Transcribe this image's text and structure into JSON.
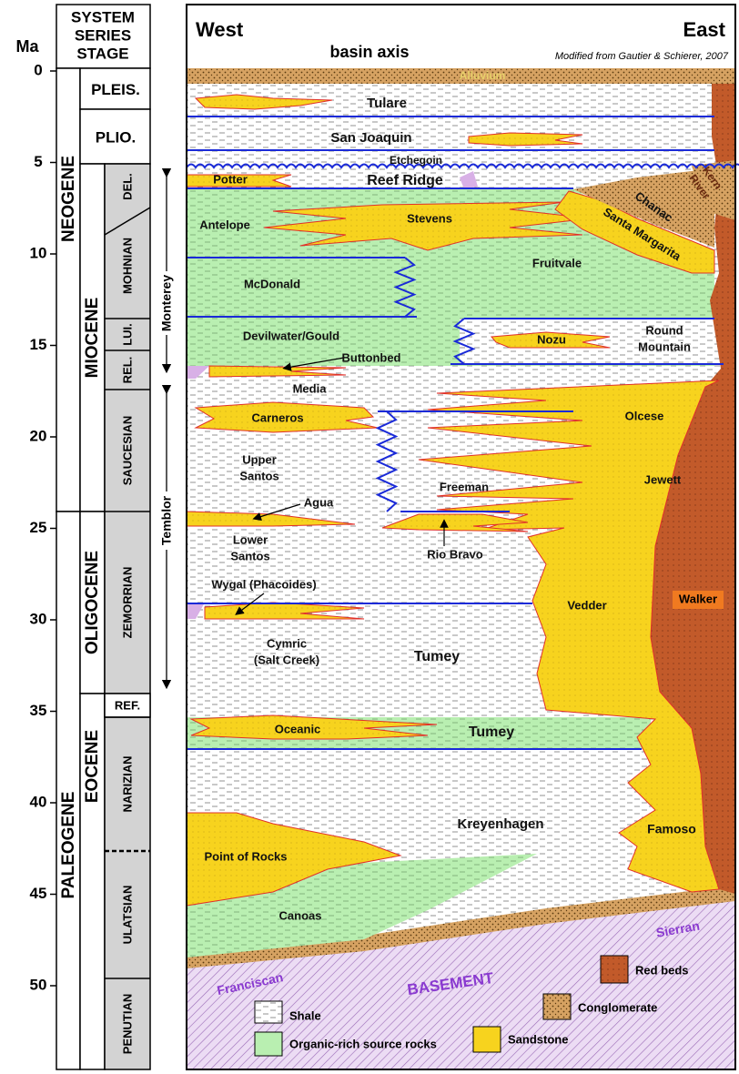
{
  "header": {
    "west": "West",
    "east": "East",
    "basin_axis": "basin axis",
    "credit": "Modified from Gautier & Schierer, 2007"
  },
  "age_axis": {
    "label": "Ma",
    "ticks": [
      0,
      5,
      10,
      15,
      20,
      25,
      30,
      35,
      40,
      45,
      50
    ]
  },
  "columns": {
    "headings": [
      "SYSTEM",
      "SERIES",
      "STAGE"
    ],
    "systems": [
      "NEOGENE",
      "PALEOGENE"
    ],
    "series": [
      "PLEIS.",
      "PLIO.",
      "MIOCENE",
      "OLIGOCENE",
      "EOCENE"
    ],
    "stages": [
      "DEL.",
      "MOHNIAN",
      "LUI.",
      "REL.",
      "SAUCESIAN",
      "ZEMORRIAN",
      "REF.",
      "NARIZIAN",
      "ULATSIAN",
      "PENUTIAN"
    ]
  },
  "groups": [
    "Monterey",
    "Temblor"
  ],
  "formations": [
    {
      "lines": [
        "Alluvium"
      ]
    },
    {
      "lines": [
        "Tulare"
      ]
    },
    {
      "lines": [
        "San Joaquin"
      ]
    },
    {
      "lines": [
        "Etchegoin"
      ]
    },
    {
      "lines": [
        "Potter"
      ]
    },
    {
      "lines": [
        "Reef Ridge"
      ]
    },
    {
      "lines": [
        "Antelope"
      ]
    },
    {
      "lines": [
        "Stevens"
      ]
    },
    {
      "lines": [
        "Fruitvale"
      ]
    },
    {
      "lines": [
        "McDonald"
      ]
    },
    {
      "lines": [
        "Devilwater/Gould"
      ]
    },
    {
      "lines": [
        "Nozu"
      ]
    },
    {
      "lines": [
        "Round",
        "Mountain"
      ]
    },
    {
      "lines": [
        "Buttonbed"
      ]
    },
    {
      "lines": [
        "Media"
      ]
    },
    {
      "lines": [
        "Carneros"
      ]
    },
    {
      "lines": [
        "Olcese"
      ]
    },
    {
      "lines": [
        "Upper",
        "Santos"
      ]
    },
    {
      "lines": [
        "Freeman"
      ]
    },
    {
      "lines": [
        "Jewett"
      ]
    },
    {
      "lines": [
        "Agua"
      ]
    },
    {
      "lines": [
        "Lower",
        "Santos"
      ]
    },
    {
      "lines": [
        "Rio Bravo"
      ]
    },
    {
      "lines": [
        "Wygal (Phacoides)"
      ]
    },
    {
      "lines": [
        "Vedder"
      ]
    },
    {
      "lines": [
        "Walker"
      ]
    },
    {
      "lines": [
        "Cymric",
        "(Salt Creek)"
      ]
    },
    {
      "lines": [
        "Tumey"
      ]
    },
    {
      "lines": [
        "Oceanic"
      ]
    },
    {
      "lines": [
        "Tumey"
      ]
    },
    {
      "lines": [
        "Kreyenhagen"
      ]
    },
    {
      "lines": [
        "Famoso"
      ]
    },
    {
      "lines": [
        "Point of Rocks"
      ]
    },
    {
      "lines": [
        "Canoas"
      ]
    },
    {
      "lines": [
        "Kern",
        "River"
      ]
    },
    {
      "lines": [
        "Chanac"
      ]
    },
    {
      "lines": [
        "Santa Margarita"
      ]
    },
    {
      "lines": [
        "Franciscan"
      ]
    },
    {
      "lines": [
        "BASEMENT"
      ]
    },
    {
      "lines": [
        "Sierran"
      ]
    }
  ],
  "legend": [
    "Shale",
    "Organic-rich source rocks",
    "Sandstone",
    "Conglomerate",
    "Red beds"
  ]
}
